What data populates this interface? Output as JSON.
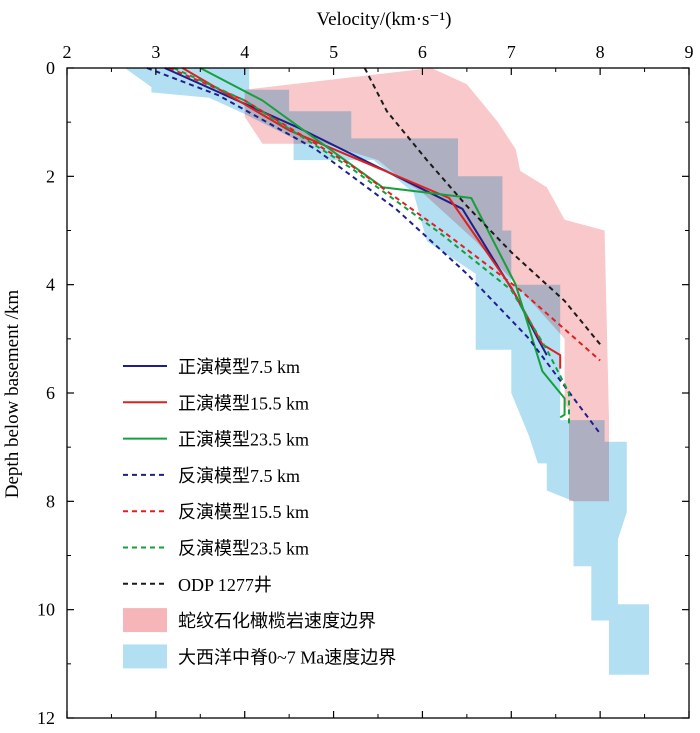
{
  "chart_data": {
    "type": "line",
    "title": "",
    "xlabel": "Velocity/(km·s⁻¹)",
    "ylabel": "Depth below basement /km",
    "xlim": [
      2,
      9
    ],
    "ylim": [
      12,
      0
    ],
    "xticks": [
      "2",
      "3",
      "4",
      "5",
      "6",
      "7",
      "8",
      "9"
    ],
    "yticks": [
      "0",
      "2",
      "4",
      "6",
      "8",
      "10",
      "12"
    ],
    "x_axis_position": "top",
    "legend_position": "bottom-left",
    "bands": [
      {
        "name": "大西洋中脊0~7 Ma速度边界",
        "color": "#b3dff3",
        "left": [
          [
            2.65,
            0
          ],
          [
            2.95,
            0.35
          ],
          [
            2.95,
            0.45
          ],
          [
            3.6,
            0.55
          ],
          [
            4.0,
            0.85
          ],
          [
            4.55,
            1.3
          ],
          [
            4.55,
            1.7
          ],
          [
            5.45,
            1.7
          ],
          [
            5.9,
            2.3
          ],
          [
            6.05,
            3.2
          ],
          [
            6.6,
            3.8
          ],
          [
            6.6,
            5.2
          ],
          [
            7.0,
            5.2
          ],
          [
            7.0,
            6.0
          ],
          [
            7.2,
            6.8
          ],
          [
            7.3,
            7.3
          ],
          [
            7.4,
            7.3
          ],
          [
            7.4,
            7.8
          ],
          [
            7.7,
            8.0
          ],
          [
            7.7,
            9.2
          ],
          [
            7.9,
            9.2
          ],
          [
            7.9,
            10.2
          ],
          [
            8.1,
            10.2
          ],
          [
            8.1,
            11.2
          ],
          [
            8.5,
            11.2
          ]
        ],
        "right": [
          [
            4.05,
            0
          ],
          [
            4.05,
            0.4
          ],
          [
            4.5,
            0.4
          ],
          [
            4.5,
            0.8
          ],
          [
            5.2,
            0.8
          ],
          [
            5.2,
            1.3
          ],
          [
            6.4,
            1.3
          ],
          [
            6.4,
            2.0
          ],
          [
            6.9,
            2.0
          ],
          [
            6.9,
            3.0
          ],
          [
            7.0,
            3.0
          ],
          [
            7.0,
            4.0
          ],
          [
            7.55,
            4.0
          ],
          [
            7.55,
            5.1
          ],
          [
            7.55,
            6.5
          ],
          [
            8.05,
            6.5
          ],
          [
            8.05,
            6.9
          ],
          [
            8.3,
            6.9
          ],
          [
            8.3,
            8.2
          ],
          [
            8.2,
            8.7
          ],
          [
            8.2,
            9.9
          ],
          [
            8.55,
            9.9
          ],
          [
            8.55,
            11.2
          ]
        ]
      },
      {
        "name": "蛇纹石化橄榄岩速度边界",
        "color": "#f6b6b9",
        "left": [
          [
            4.0,
            0.4
          ],
          [
            4.0,
            0.9
          ],
          [
            4.2,
            1.4
          ],
          [
            4.9,
            1.4
          ],
          [
            5.5,
            1.7
          ],
          [
            5.8,
            2.1
          ],
          [
            6.0,
            2.3
          ],
          [
            6.6,
            3.2
          ],
          [
            7.0,
            3.9
          ],
          [
            7.6,
            5.0
          ],
          [
            7.6,
            6.2
          ],
          [
            7.65,
            6.3
          ],
          [
            7.65,
            8.0
          ]
        ],
        "right": [
          [
            6.1,
            0
          ],
          [
            6.5,
            0.3
          ],
          [
            6.85,
            1.0
          ],
          [
            7.05,
            1.5
          ],
          [
            7.1,
            1.9
          ],
          [
            7.3,
            2.1
          ],
          [
            7.4,
            2.2
          ],
          [
            7.6,
            2.8
          ],
          [
            8.05,
            3.0
          ],
          [
            8.1,
            6.5
          ],
          [
            8.1,
            8.0
          ]
        ]
      }
    ],
    "series": [
      {
        "name": "正演模型7.5 km",
        "color": "#1f1f8c",
        "dash": false,
        "x": [
          3.1,
          4.6,
          6.45,
          7.05,
          7.3,
          7.4
        ],
        "y": [
          0,
          1.1,
          2.6,
          4.2,
          5.0,
          5.3
        ]
      },
      {
        "name": "正演模型15.5 km",
        "color": "#e0201f",
        "dash": false,
        "x": [
          3.3,
          4.5,
          6.3,
          7.0,
          7.35,
          7.55,
          7.55
        ],
        "y": [
          0,
          1.15,
          2.4,
          4.05,
          5.1,
          5.3,
          5.55
        ]
      },
      {
        "name": "正演模型23.5 km",
        "color": "#14a03c",
        "dash": false,
        "x": [
          3.5,
          4.2,
          5.55,
          6.55,
          7.05,
          7.35,
          7.6,
          7.6,
          7.55
        ],
        "y": [
          0,
          0.6,
          2.2,
          2.4,
          4.0,
          5.6,
          6.1,
          6.4,
          6.45
        ]
      },
      {
        "name": "反演模型7.5 km",
        "color": "#1f1f8c",
        "dash": true,
        "x": [
          2.9,
          3.7,
          4.8,
          5.7,
          6.5,
          7.2,
          8.0
        ],
        "y": [
          0,
          0.5,
          1.5,
          2.6,
          3.8,
          5.0,
          6.75
        ]
      },
      {
        "name": "反演模型15.5 km",
        "color": "#e0201f",
        "dash": true,
        "x": [
          3.15,
          4.0,
          5.2,
          6.3,
          7.1,
          8.0
        ],
        "y": [
          0,
          0.6,
          1.8,
          3.1,
          4.1,
          5.4
        ]
      },
      {
        "name": "反演模型23.5 km",
        "color": "#14a03c",
        "dash": true,
        "x": [
          3.2,
          4.0,
          5.2,
          6.2,
          7.0,
          7.4,
          7.65,
          7.65
        ],
        "y": [
          0,
          0.6,
          1.85,
          3.05,
          4.1,
          5.2,
          6.0,
          6.6
        ]
      },
      {
        "name": "ODP 1277井",
        "color": "#1a1a1a",
        "dash": true,
        "x": [
          5.35,
          5.6,
          6.05,
          6.5,
          7.0,
          7.6,
          8.0
        ],
        "y": [
          0,
          0.8,
          1.7,
          2.55,
          3.4,
          4.3,
          5.1
        ]
      }
    ]
  }
}
